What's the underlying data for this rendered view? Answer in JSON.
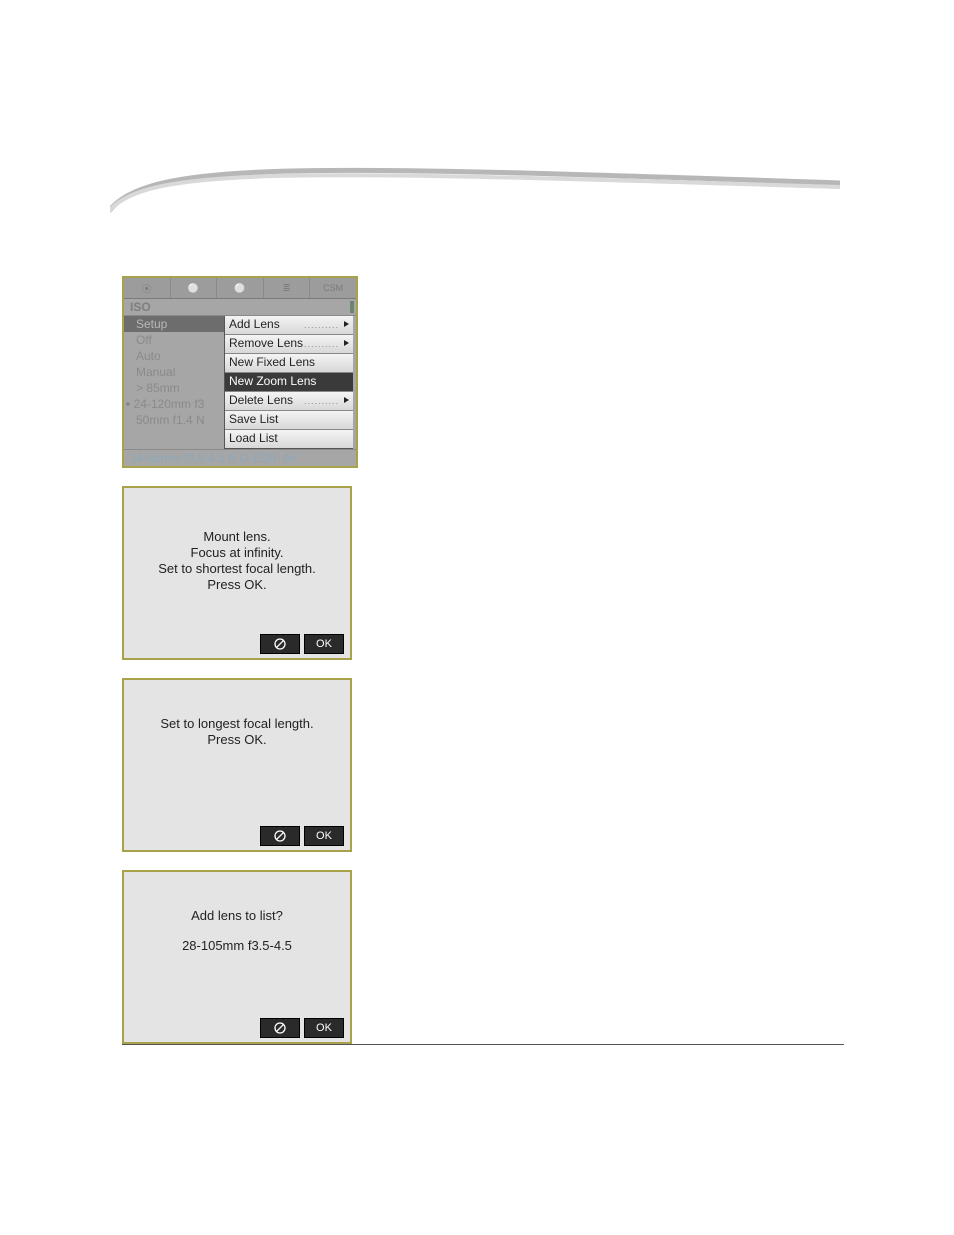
{
  "menu": {
    "tabs": [
      "⦿",
      "⚪",
      "⚪",
      "≣"
    ],
    "csm_label": "CSM",
    "iso_label": "ISO",
    "left_items": [
      {
        "label": "Setup",
        "cls": "ml-setup"
      },
      {
        "label": "Off",
        "cls": ""
      },
      {
        "label": "Auto",
        "cls": ""
      },
      {
        "label": "Manual",
        "cls": ""
      },
      {
        "label": "> 85mm",
        "cls": ""
      },
      {
        "label": "24-120mm f3",
        "cls": "ml-dot"
      },
      {
        "label": "50mm f1.4 N",
        "cls": ""
      }
    ],
    "right_items": [
      {
        "label": "Add Lens",
        "arrow": true,
        "dots": true,
        "highlight": false
      },
      {
        "label": "Remove Lens",
        "arrow": true,
        "dots": true,
        "highlight": false
      },
      {
        "label": "New Fixed Lens",
        "arrow": false,
        "dots": false,
        "highlight": false
      },
      {
        "label": "New Zoom Lens",
        "arrow": false,
        "dots": false,
        "highlight": true
      },
      {
        "label": "Delete Lens",
        "arrow": true,
        "dots": true,
        "highlight": false
      },
      {
        "label": "Save List",
        "arrow": false,
        "dots": false,
        "highlight": false
      },
      {
        "label": "Load List",
        "arrow": false,
        "dots": false,
        "highlight": false
      }
    ],
    "footer": "24-85mm f3.5-4.5 N G EDIF AF"
  },
  "dialog1": {
    "lines": [
      "Mount lens.",
      "Focus at infinity.",
      "Set to shortest focal length.",
      "Press OK."
    ],
    "ok": "OK"
  },
  "dialog2": {
    "lines": [
      "Set to longest focal length.",
      "Press OK."
    ],
    "ok": "OK"
  },
  "dialog3": {
    "line_a": "Add lens to list?",
    "line_b": "28-105mm f3.5-4.5",
    "ok": "OK"
  },
  "colors": {
    "panel_border": "#a9a24d",
    "panel_bg": "#e4e4e4",
    "menu_bg": "#a6a6a6",
    "highlight_bg": "#3a3a3a",
    "btn_bg": "#2a2a2a"
  }
}
